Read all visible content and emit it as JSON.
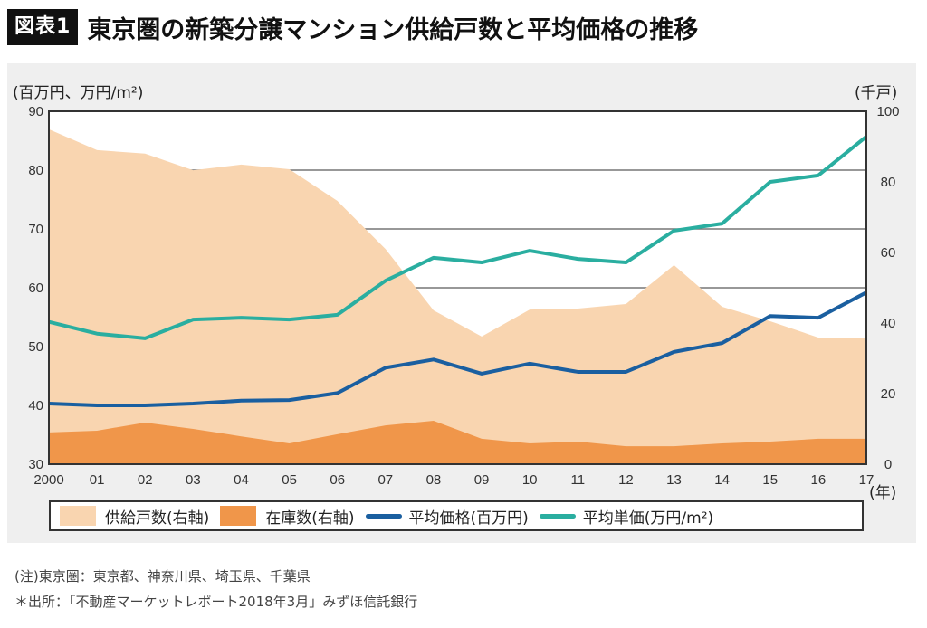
{
  "header": {
    "badge": "図表1",
    "title": "東京圏の新築分譲マンション供給戸数と平均価格の推移"
  },
  "axes": {
    "left_unit": "(百万円、万円/m²)",
    "right_unit": "(千戸)",
    "x_unit": "(年)"
  },
  "notes": {
    "note": "(注)東京圏：東京都、神奈川県、埼玉県、千葉県",
    "source": "＊出所：「不動産マーケットレポート2018年3月」みずほ信託銀行"
  },
  "chart_data": {
    "type": "area+line",
    "title": "東京圏の新築分譲マンション供給戸数と平均価格の推移",
    "xlabel": "(年)",
    "ylabel_left": "(百万円、万円/m²)",
    "ylabel_right": "(千戸)",
    "categories": [
      "2000",
      "01",
      "02",
      "03",
      "04",
      "05",
      "06",
      "07",
      "08",
      "09",
      "10",
      "11",
      "12",
      "13",
      "14",
      "15",
      "16",
      "17"
    ],
    "ylim_left": [
      30,
      90
    ],
    "yticks_left": [
      30,
      40,
      50,
      60,
      70,
      80,
      90
    ],
    "ylim_right": [
      0,
      100
    ],
    "yticks_right": [
      0,
      20,
      40,
      60,
      80,
      100
    ],
    "grid": "horizontal",
    "legend_position": "bottom",
    "series": [
      {
        "name": "供給戸数(右軸)",
        "type": "area",
        "axis": "right",
        "color": "#f9d5b0",
        "values": [
          94.9,
          89.0,
          88.0,
          83.3,
          84.9,
          83.6,
          74.6,
          61.0,
          43.6,
          36.2,
          43.8,
          44.1,
          45.4,
          56.4,
          44.6,
          40.5,
          35.9,
          35.6
        ]
      },
      {
        "name": "在庫数(右軸)",
        "type": "area",
        "axis": "right",
        "color": "#f0964a",
        "values": [
          9.0,
          9.5,
          11.8,
          10.0,
          7.9,
          5.9,
          8.5,
          11.0,
          12.3,
          7.2,
          5.9,
          6.4,
          5.1,
          5.1,
          5.9,
          6.4,
          7.2,
          7.2
        ]
      },
      {
        "name": "平均価格(百万円)",
        "type": "line",
        "axis": "left",
        "color": "#1a5fa0",
        "values": [
          40.3,
          40.0,
          40.0,
          40.3,
          40.8,
          40.9,
          42.1,
          46.4,
          47.8,
          45.4,
          47.1,
          45.7,
          45.7,
          49.1,
          50.6,
          55.2,
          54.9,
          59.2
        ]
      },
      {
        "name": "平均単価(万円/m²)",
        "type": "line",
        "axis": "left",
        "color": "#2aaea0",
        "values": [
          54.2,
          52.2,
          51.4,
          54.6,
          54.9,
          54.6,
          55.4,
          61.2,
          65.1,
          64.3,
          66.3,
          64.9,
          64.3,
          69.7,
          70.9,
          78.0,
          79.1,
          85.7
        ]
      }
    ]
  }
}
